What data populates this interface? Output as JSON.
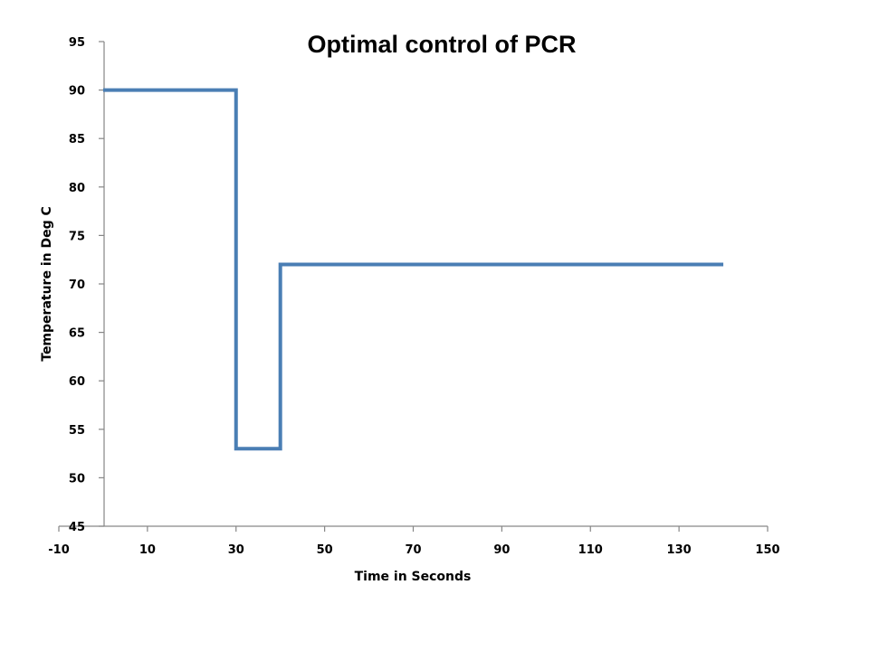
{
  "chart_data": {
    "type": "line",
    "title": "Optimal control of PCR",
    "xlabel": "Time in Seconds",
    "ylabel": "Temperature in Deg C",
    "xlim": [
      -10,
      150
    ],
    "ylim": [
      45,
      95
    ],
    "x_ticks": [
      "-10",
      "10",
      "30",
      "50",
      "70",
      "90",
      "110",
      "130",
      "150"
    ],
    "y_ticks": [
      "45",
      "50",
      "55",
      "60",
      "65",
      "70",
      "75",
      "80",
      "85",
      "90",
      "95"
    ],
    "grid": false,
    "series": [
      {
        "color": "#4a7eb4",
        "points": [
          [
            0,
            90
          ],
          [
            30,
            90
          ],
          [
            30,
            53
          ],
          [
            40,
            53
          ],
          [
            40,
            72
          ],
          [
            140,
            72
          ]
        ]
      }
    ]
  }
}
